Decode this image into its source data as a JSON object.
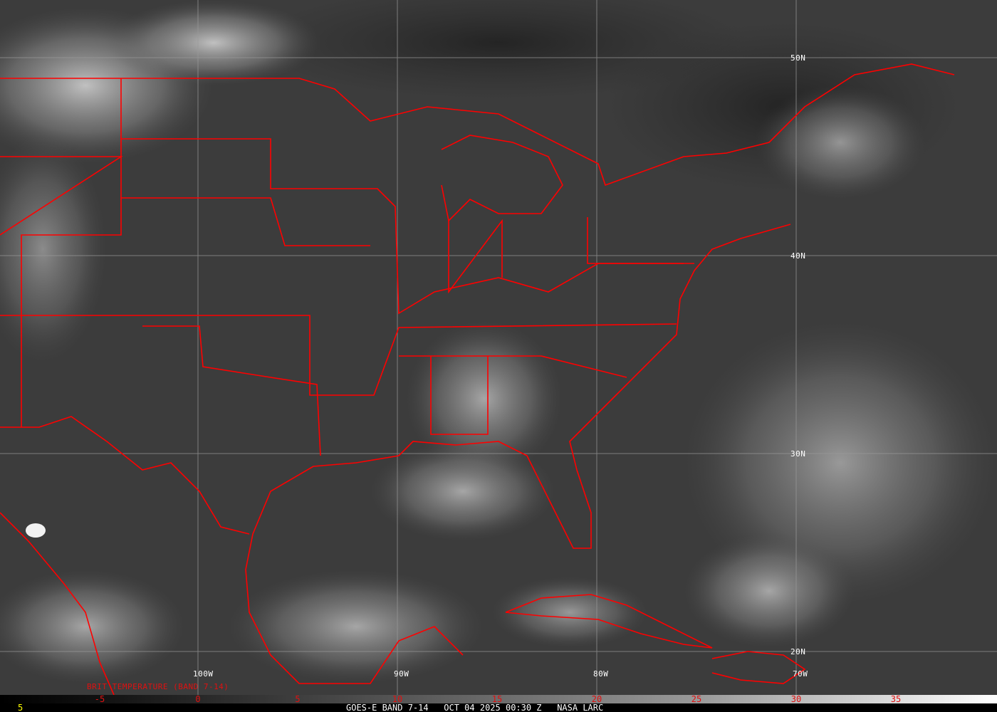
{
  "image": {
    "description_type": "satellite-image",
    "overlay_color": "#ff0000",
    "latitude_labels": [
      "50N",
      "40N",
      "30N",
      "20N"
    ],
    "longitude_labels": [
      "100W",
      "90W",
      "80W",
      "70W"
    ]
  },
  "legend": {
    "title": "BRIT TEMPERATURE (BAND 7-14)",
    "ticks": [
      "-5",
      "0",
      "5",
      "10",
      "15",
      "20",
      "25",
      "30",
      "35"
    ],
    "colormap": [
      "#000000",
      "#ffffff"
    ]
  },
  "footer": {
    "frame_number": "5",
    "title": "GOES-E BAND 7-14   OCT 04 2025 00:30 Z   NASA LARC"
  }
}
